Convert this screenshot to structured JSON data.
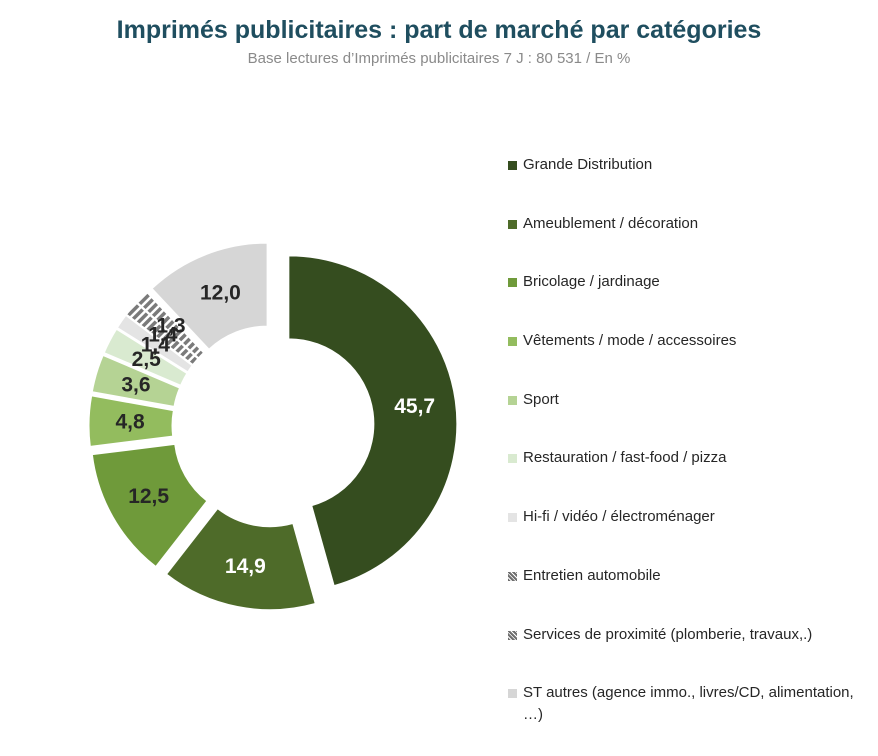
{
  "header": {
    "title": "Imprimés publicitaires : part de marché par catégories",
    "subtitle": "Base lectures d’Imprimés publicitaires 7 J : 80 531 / En %"
  },
  "chart_data": {
    "type": "pie",
    "title": "Imprimés publicitaires : part de marché par catégories",
    "subtitle": "Base lectures d’Imprimés publicitaires 7 J : 80 531 / En %",
    "legend_position": "right",
    "categories": [
      "Grande Distribution",
      "Ameublement / décoration",
      "Bricolage / jardinage",
      "Vêtements / mode / accessoires",
      "Sport",
      "Restauration / fast-food / pizza",
      "Hi-fi / vidéo / électroménager",
      "Entretien automobile",
      "Services de proximité (plomberie, travaux,.)",
      "ST autres (agence immo., livres/CD, alimentation, …)"
    ],
    "values": [
      45.7,
      14.9,
      12.5,
      4.8,
      3.6,
      2.5,
      1.4,
      1.4,
      1.3,
      12.0
    ],
    "labels": [
      "45,7",
      "14,9",
      "12,5",
      "4,8",
      "3,6",
      "2,5",
      "1,4",
      "1,4",
      "1,3",
      "12,0"
    ],
    "colors": [
      "#354d1f",
      "#4e6b29",
      "#6f9a3a",
      "#93bc5e",
      "#b5d394",
      "#d9ead0",
      "#e4e4e4",
      "#7f7f7f",
      "#8c8c8c",
      "#d6d6d6"
    ],
    "label_colors": [
      "#ffffff",
      "#ffffff",
      "#262626",
      "#262626",
      "#262626",
      "#262626",
      "#262626",
      "#262626",
      "#262626",
      "#262626"
    ],
    "hatched": [
      false,
      false,
      false,
      false,
      false,
      false,
      false,
      true,
      true,
      false
    ],
    "donut": true
  }
}
